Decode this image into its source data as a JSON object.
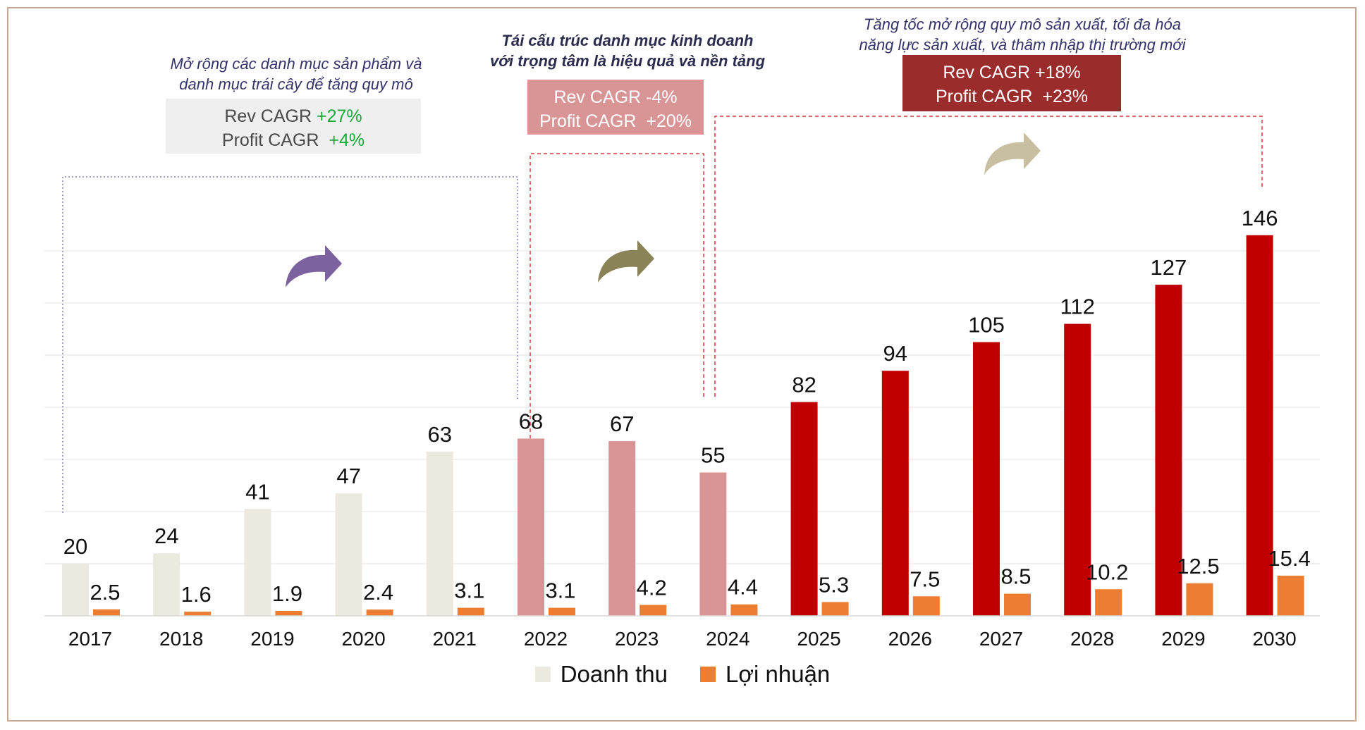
{
  "phases": [
    {
      "desc_lines": [
        "Mở rộng các danh mục sản phẩm và",
        "danh mục trái cây để tăng quy mô"
      ],
      "rev_label": "Rev CAGR",
      "rev_value": "+27%",
      "profit_label": "Profit CAGR",
      "profit_value": "+4%"
    },
    {
      "desc_lines": [
        "Tái cấu trúc danh mục kinh doanh",
        "với trọng tâm là hiệu quả và nền tảng"
      ],
      "rev_label": "Rev CAGR",
      "rev_value": "-4%",
      "profit_label": "Profit CAGR",
      "profit_value": "+20%"
    },
    {
      "desc_lines": [
        "Tăng tốc mở rộng quy mô sản xuất, tối đa hóa",
        "năng lực sản xuất, và thâm nhập thị trường mới"
      ],
      "rev_label": "Rev CAGR",
      "rev_value": "+18%",
      "profit_label": "Profit CAGR",
      "profit_value": "+23%"
    }
  ],
  "colors": {
    "phase1_bar": "#ece9de",
    "phase2_bar": "#d99595",
    "phase3_bar": "#c00000",
    "profit_bar": "#ed7d31",
    "phase1_box": "#efefef",
    "phase2_box": "#d99595",
    "phase3_box": "#9b2c2c",
    "green": "#1aaa3a",
    "arrow1": "#7d62a0",
    "arrow2": "#8a8358",
    "arrow3": "#c8bea0"
  },
  "icons": [
    "curved-arrow-icon",
    "curved-arrow-icon",
    "curved-arrow-icon"
  ],
  "chart_data": {
    "type": "bar",
    "categories": [
      "2017",
      "2018",
      "2019",
      "2020",
      "2021",
      "2022",
      "2023",
      "2024",
      "2025",
      "2026",
      "2027",
      "2028",
      "2029",
      "2030"
    ],
    "series": [
      {
        "name": "Doanh thu",
        "values": [
          20,
          24,
          41,
          47,
          63,
          68,
          67,
          55,
          82,
          94,
          105,
          112,
          127,
          146
        ]
      },
      {
        "name": "Lợi nhuận",
        "values": [
          2.5,
          1.6,
          1.9,
          2.4,
          3.1,
          3.1,
          4.2,
          4.4,
          5.3,
          7.5,
          8.5,
          10.2,
          12.5,
          15.4
        ]
      }
    ],
    "value_labels": {
      "revenue": [
        "20",
        "24",
        "41",
        "47",
        "63",
        "68",
        "67",
        "55",
        "82",
        "94",
        "105",
        "112",
        "127",
        "146"
      ],
      "profit": [
        "2.5",
        "1.6",
        "1.9",
        "2.4",
        "3.1",
        "3.1",
        "4.2",
        "4.4",
        "5.3",
        "7.5",
        "8.5",
        "10.2",
        "12.5",
        "15.4"
      ]
    },
    "phase_of_year": [
      1,
      1,
      1,
      1,
      1,
      2,
      2,
      2,
      3,
      3,
      3,
      3,
      3,
      3
    ],
    "ylim": [
      0,
      160
    ],
    "grid": true,
    "legend_position": "bottom"
  }
}
